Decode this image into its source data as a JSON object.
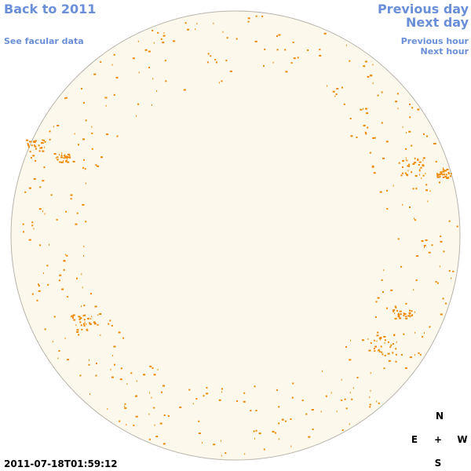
{
  "nav": {
    "back": "Back to 2011",
    "facular": "See facular data",
    "previous_day": "Previous day",
    "next_day": "Next day",
    "previous_hour": "Previous hour",
    "next_hour": "Next hour"
  },
  "timestamp": "2011-07-18T01:59:12",
  "compass": {
    "north": "N",
    "east": "E",
    "center": "+",
    "west": "W",
    "south": "S"
  }
}
